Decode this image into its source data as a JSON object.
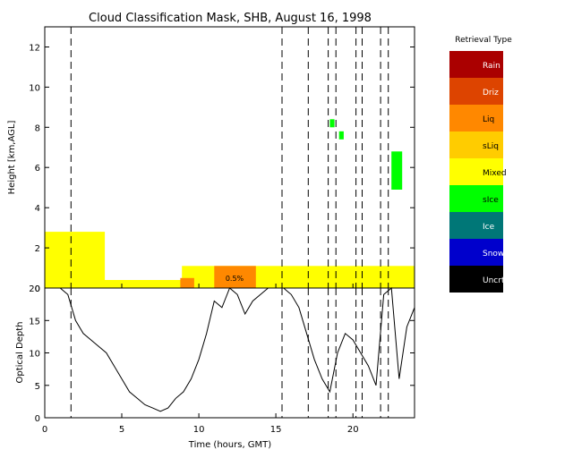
{
  "chart_data": [
    {
      "type": "heatmap",
      "title": "Cloud Classification Mask, SHB, August 16, 1998",
      "xlabel": "",
      "ylabel": "Height [km,AGL]",
      "xlim": [
        0,
        24
      ],
      "ylim": [
        0,
        13
      ],
      "yticks": [
        0,
        2,
        4,
        6,
        8,
        10,
        12
      ],
      "xticks": [
        0,
        5,
        10,
        15,
        20
      ],
      "legend": {
        "title": "Retrieval Type",
        "placement": "right",
        "items": [
          {
            "label": "Rain",
            "color": "#aa0000"
          },
          {
            "label": "Driz",
            "color": "#dd4400"
          },
          {
            "label": "Liq",
            "color": "#ff8800"
          },
          {
            "label": "sLiq",
            "color": "#ffcc00"
          },
          {
            "label": "Mixed",
            "color": "#ffff00"
          },
          {
            "label": "sIce",
            "color": "#00ff00"
          },
          {
            "label": "Ice",
            "color": "#007777"
          },
          {
            "label": "Snow",
            "color": "#0000cc"
          },
          {
            "label": "Uncrt",
            "color": "#000000"
          }
        ]
      },
      "annotation": "0.5%",
      "dashed_lines_x": [
        1.7,
        15.4,
        17.1,
        18.4,
        18.9,
        20.2,
        20.6,
        21.8,
        22.3
      ],
      "regions": [
        {
          "class": "Mixed",
          "t_start": 0.0,
          "t_end": 3.9,
          "z_bottom": 0.4,
          "z_top": 2.8
        },
        {
          "class": "Mixed",
          "t_start": 0.0,
          "t_end": 24.0,
          "z_bottom": 0.0,
          "z_top": 0.4
        },
        {
          "class": "Mixed",
          "t_start": 8.9,
          "t_end": 24.0,
          "z_bottom": 0.4,
          "z_top": 1.1
        },
        {
          "class": "Liq",
          "t_start": 11.0,
          "t_end": 13.7,
          "z_bottom": 0.0,
          "z_top": 1.1
        },
        {
          "class": "Liq",
          "t_start": 8.8,
          "t_end": 9.7,
          "z_bottom": 0.0,
          "z_top": 0.5
        },
        {
          "class": "sIce",
          "t_start": 22.5,
          "t_end": 23.2,
          "z_bottom": 4.9,
          "z_top": 6.8
        },
        {
          "class": "sIce",
          "t_start": 18.5,
          "t_end": 18.8,
          "z_bottom": 8.0,
          "z_top": 8.4
        },
        {
          "class": "sIce",
          "t_start": 19.1,
          "t_end": 19.4,
          "z_bottom": 7.4,
          "z_top": 7.8
        }
      ]
    },
    {
      "type": "line",
      "xlabel": "Time (hours, GMT)",
      "ylabel": "Optical Depth",
      "xlim": [
        0,
        24
      ],
      "ylim": [
        0,
        20
      ],
      "yticks": [
        0,
        5,
        10,
        15,
        20
      ],
      "xticks": [
        0,
        5,
        10,
        15,
        20
      ],
      "series": [
        {
          "x": [
            0.0,
            0.5,
            1.0,
            1.5,
            2.0,
            2.5,
            3.0,
            3.5,
            4.0,
            4.5,
            5.0,
            5.5,
            6.0,
            6.5,
            7.0,
            7.5,
            8.0,
            8.5,
            9.0,
            9.5,
            10.0,
            10.5,
            11.0,
            11.5,
            12.0,
            12.5,
            13.0,
            13.5,
            14.0,
            14.5,
            15.0,
            15.5,
            16.0,
            16.5,
            17.0,
            17.5,
            18.0,
            18.5,
            19.0,
            19.5,
            20.0,
            20.5,
            21.0,
            21.5,
            22.0,
            22.5,
            23.0,
            23.5,
            24.0
          ],
          "y": [
            20,
            20,
            20,
            19,
            15,
            13,
            12,
            11,
            10,
            8,
            6,
            4,
            3,
            2,
            1.5,
            1,
            1.5,
            3,
            4,
            6,
            9,
            13,
            18,
            17,
            20,
            19,
            16,
            18,
            19,
            20,
            20,
            20,
            19,
            17,
            13,
            9,
            6,
            4,
            10,
            13,
            12,
            10,
            8,
            5,
            19,
            20,
            6,
            14,
            17
          ]
        }
      ]
    }
  ]
}
